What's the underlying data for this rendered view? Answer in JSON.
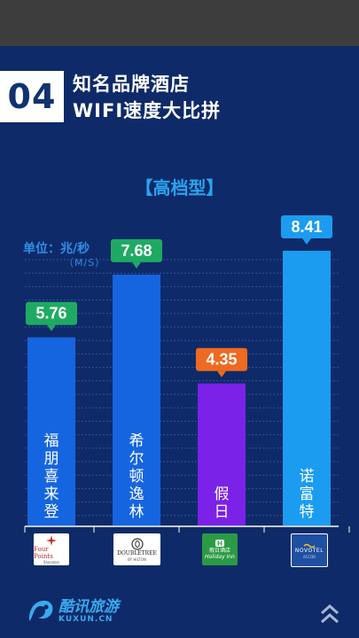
{
  "header": {
    "number": "04",
    "title_line1": "知名品牌酒店",
    "title_line2": "WIFI速度大比拼"
  },
  "chart_data": {
    "type": "bar",
    "title": "【高档型】",
    "ylabel": "单位：兆/秒",
    "yunit": "（M/S）",
    "categories": [
      "福朋喜来登",
      "希尔顿逸林",
      "假日",
      "诺富特"
    ],
    "values": [
      5.76,
      7.68,
      4.35,
      8.41
    ],
    "value_labels": [
      "5.76",
      "7.68",
      "4.35",
      "8.41"
    ],
    "bar_colors": [
      "#1565e0",
      "#1565e0",
      "#7a22e8",
      "#1b9cf0"
    ],
    "label_colors": [
      "#1faa63",
      "#1faa63",
      "#ee6a20",
      "#1b9cf0"
    ],
    "grid": true
  },
  "logos": [
    {
      "name": "four-points-logo",
      "line1": "Four Points",
      "line2": "Sheraton"
    },
    {
      "name": "doubletree-logo",
      "line1": "DOUBLETREE",
      "line2": "BY HILTON"
    },
    {
      "name": "holiday-inn-logo",
      "line1": "假日酒店",
      "line2": "Holiday Inn"
    },
    {
      "name": "novotel-logo",
      "line1": "NOVOTEL",
      "line2": "ACCOR"
    }
  ],
  "brand": {
    "name_cn": "酷讯旅游",
    "name_en": "KUXUN.CN"
  },
  "colors": {
    "background": "#0f2a68",
    "accent": "#2aa3f0"
  }
}
